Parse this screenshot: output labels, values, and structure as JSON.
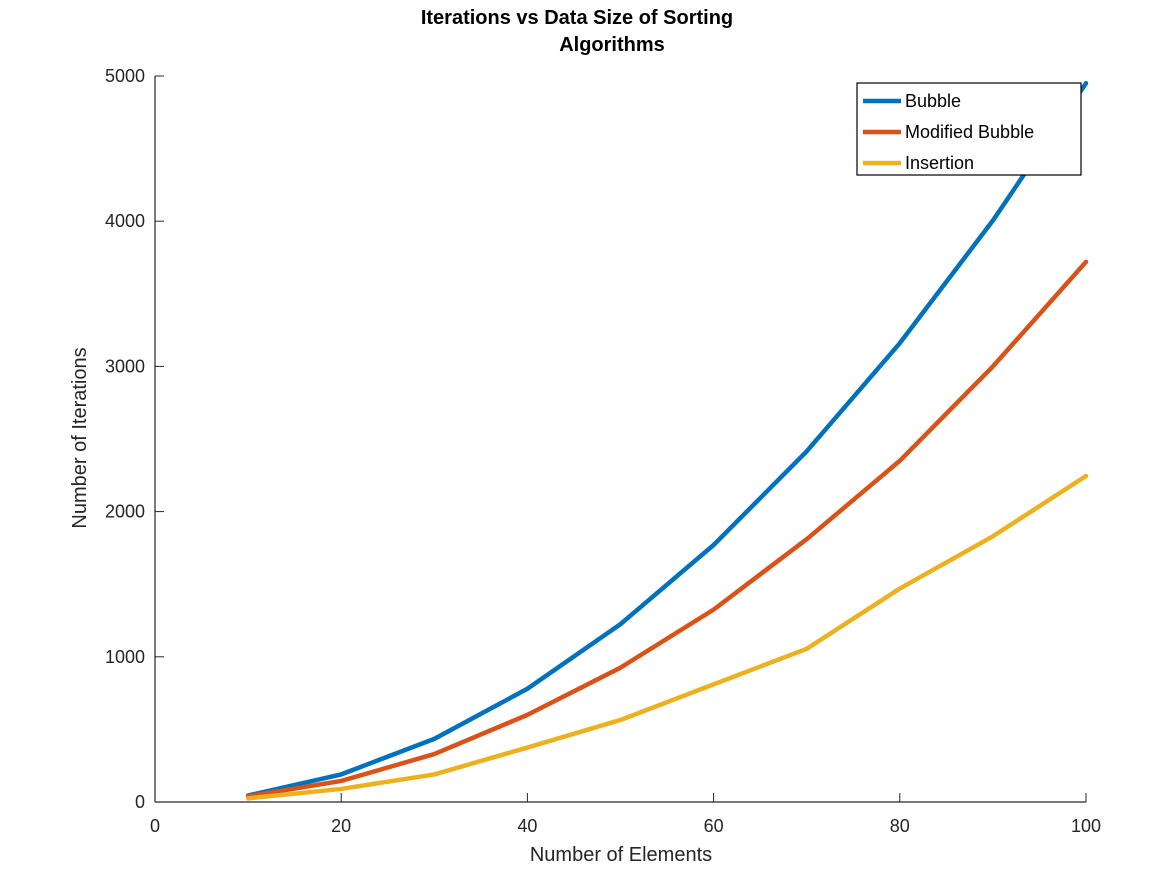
{
  "chart_data": {
    "type": "line",
    "title": [
      "Iterations vs Data Size of Sorting",
      "Algorithms"
    ],
    "xlabel": "Number of Elements",
    "ylabel": "Number of Iterations",
    "xlim": [
      0,
      100
    ],
    "ylim": [
      0,
      5000
    ],
    "xticks": [
      0,
      20,
      40,
      60,
      80,
      100
    ],
    "yticks": [
      0,
      1000,
      2000,
      3000,
      4000,
      5000
    ],
    "grid": false,
    "legend_position": "top-right",
    "x": [
      10,
      20,
      30,
      40,
      50,
      60,
      70,
      80,
      90,
      100
    ],
    "series": [
      {
        "name": "Bubble",
        "color": "#0072BD",
        "values": [
          45,
          190,
          435,
          780,
          1225,
          1770,
          2415,
          3160,
          4005,
          4950
        ]
      },
      {
        "name": "Modified Bubble",
        "color": "#D95319",
        "values": [
          40,
          145,
          330,
          600,
          925,
          1325,
          1810,
          2350,
          3000,
          3720
        ]
      },
      {
        "name": "Insertion",
        "color": "#EDB120",
        "values": [
          25,
          90,
          190,
          375,
          565,
          810,
          1055,
          1470,
          1830,
          2245
        ]
      }
    ]
  }
}
